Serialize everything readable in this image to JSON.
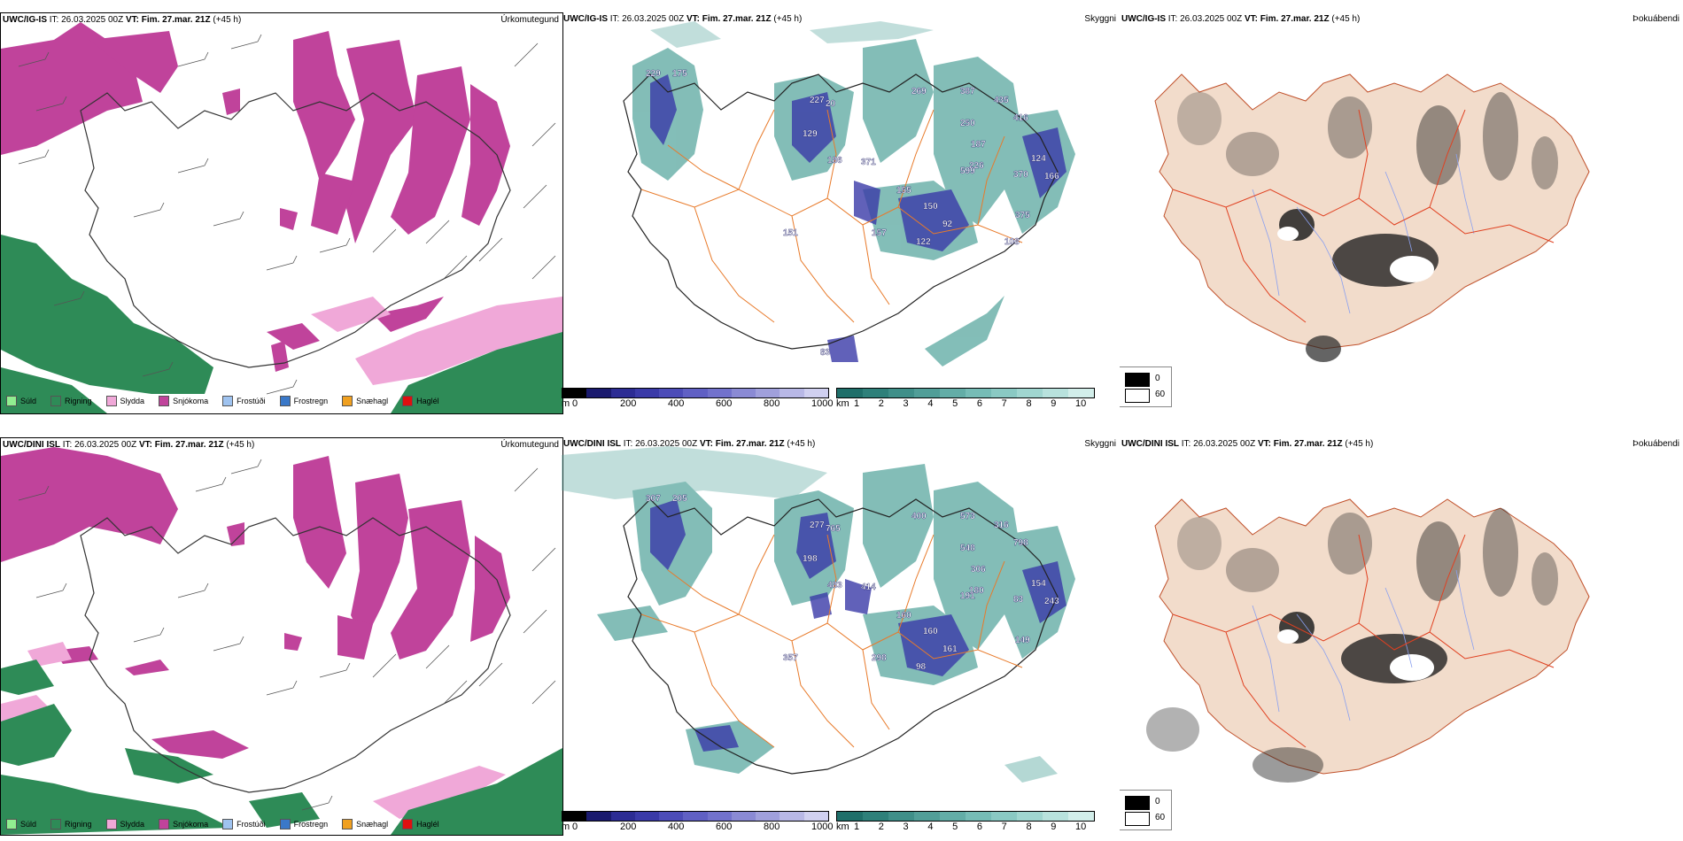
{
  "rows": [
    {
      "model": "UWC/IG-IS",
      "it": "IT: 26.03.2025 00Z",
      "vt_label": "VT:",
      "vt": "Fim. 27.mar. 21Z",
      "lead": "(+45 h)",
      "labels_ceiling": [
        "229",
        "175",
        "227",
        "20",
        "269",
        "387",
        "435",
        "250",
        "416",
        "187",
        "226",
        "124",
        "129",
        "186",
        "371",
        "599",
        "370",
        "166",
        "155",
        "150",
        "151",
        "375",
        "157",
        "122",
        "92",
        "108",
        "83"
      ]
    },
    {
      "model": "UWC/DINI ISL",
      "it": "IT: 26.03.2025 00Z",
      "vt_label": "VT:",
      "vt": "Fim. 27.mar. 21Z",
      "lead": "(+45 h)",
      "labels_ceiling": [
        "307",
        "205",
        "277",
        "765",
        "400",
        "573",
        "316",
        "548",
        "798",
        "306",
        "180",
        "154",
        "198",
        "483",
        "414",
        "191",
        "83",
        "243",
        "160",
        "160",
        "357",
        "149",
        "298",
        "98",
        "161"
      ]
    }
  ],
  "titles": {
    "precip": "Úrkomutegund",
    "ceiling": "Skyggni",
    "fog": "Þokuábendi"
  },
  "precip_legend": [
    {
      "label": "Súld",
      "color": "#90ee90"
    },
    {
      "label": "Rigning",
      "color": "#2e8b57"
    },
    {
      "label": "Slydda",
      "color": "#f0a8d8"
    },
    {
      "label": "Snjókoma",
      "color": "#c0439b"
    },
    {
      "label": "Frostúði",
      "color": "#9fc3f0"
    },
    {
      "label": "Frostregn",
      "color": "#3a78c8"
    },
    {
      "label": "Snæhagl",
      "color": "#f0a020"
    },
    {
      "label": "Haglél",
      "color": "#e01010"
    }
  ],
  "ceiling_scale": {
    "unit": "m",
    "ticks": [
      "0",
      "200",
      "400",
      "600",
      "800",
      "1000"
    ],
    "colors": [
      "#000000",
      "#1a1a6e",
      "#2c2c94",
      "#3a3aa8",
      "#4c4cb8",
      "#6060c4",
      "#7272cc",
      "#8a8ad4",
      "#a0a0dc",
      "#b8b8e6",
      "#d0d0f0"
    ]
  },
  "visibility_scale": {
    "unit": "km",
    "ticks": [
      "1",
      "2",
      "3",
      "4",
      "5",
      "6",
      "7",
      "8",
      "9",
      "10"
    ],
    "colors": [
      "#1f6f6a",
      "#2e807a",
      "#3f8f89",
      "#519e98",
      "#63ada7",
      "#76bcb6",
      "#8ac9c3",
      "#a0d6d0",
      "#b8e2dd",
      "#d2eeea"
    ]
  },
  "fog_key": {
    "dark_label": "0",
    "light_label": "60"
  },
  "colors": {
    "snow": "#c0439b",
    "sleet": "#f0a8d8",
    "rain": "#2e8b57",
    "teal": "#5aa8a0",
    "roads": "#e87a2a",
    "land_beige": "#f2dccb",
    "rivers": "#8aa0f0",
    "blue_low": "#3a3aa8"
  }
}
